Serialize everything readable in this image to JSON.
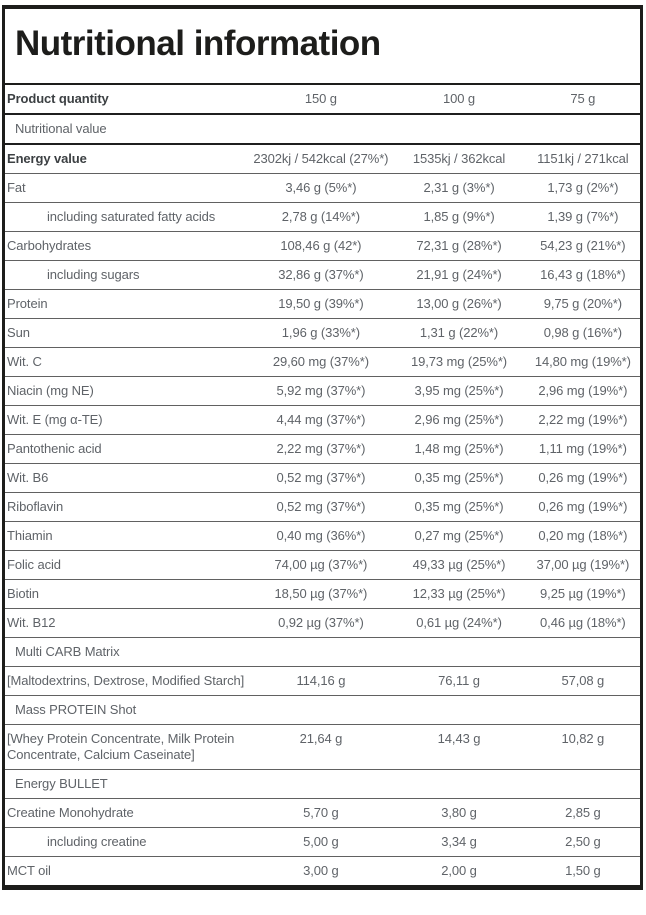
{
  "title": "Nutritional information",
  "colors": {
    "frame_border": "#1d1d1b",
    "title_text": "#1d1d1b",
    "bold_label_text": "#3c4043",
    "body_text": "#5f6368"
  },
  "table": {
    "header": {
      "label": "Product quantity",
      "values": [
        "150 g",
        "100 g",
        "75 g"
      ]
    },
    "rows": [
      {
        "type": "section",
        "label": "Nutritional value",
        "bold": true,
        "heavy": true
      },
      {
        "type": "data",
        "label": "Energy value",
        "bold": true,
        "values": [
          "2302kj / 542kcal (27%*)",
          "1535kj / 362kcal",
          "1151kj / 271kcal"
        ]
      },
      {
        "type": "data",
        "label": "Fat",
        "values": [
          "3,46 g (5%*)",
          "2,31 g (3%*)",
          "1,73 g (2%*)"
        ]
      },
      {
        "type": "data",
        "label": "including saturated fatty acids",
        "indent": true,
        "values": [
          "2,78 g (14%*)",
          "1,85 g (9%*)",
          "1,39 g (7%*)"
        ]
      },
      {
        "type": "data",
        "label": "Carbohydrates",
        "values": [
          "108,46 g (42*)",
          "72,31 g (28%*)",
          "54,23 g (21%*)"
        ]
      },
      {
        "type": "data",
        "label": "including sugars",
        "indent": true,
        "values": [
          "32,86 g (37%*)",
          "21,91 g (24%*)",
          "16,43 g (18%*)"
        ]
      },
      {
        "type": "data",
        "label": "Protein",
        "values": [
          "19,50 g (39%*)",
          "13,00 g (26%*)",
          "9,75 g (20%*)"
        ]
      },
      {
        "type": "data",
        "label": "Sun",
        "values": [
          "1,96 g (33%*)",
          "1,31 g (22%*)",
          "0,98 g (16%*)"
        ]
      },
      {
        "type": "data",
        "label": "Wit. C",
        "values": [
          "29,60 mg (37%*)",
          "19,73 mg (25%*)",
          "14,80 mg (19%*)"
        ]
      },
      {
        "type": "data",
        "label": "Niacin (mg NE)",
        "values": [
          "5,92 mg (37%*)",
          "3,95 mg (25%*)",
          "2,96 mg (19%*)"
        ]
      },
      {
        "type": "data",
        "label": "Wit. E (mg α-TE)",
        "values": [
          "4,44 mg (37%*)",
          "2,96 mg (25%*)",
          "2,22 mg (19%*)"
        ]
      },
      {
        "type": "data",
        "label": "Pantothenic acid",
        "values": [
          "2,22 mg (37%*)",
          "1,48 mg (25%*)",
          "1,11 mg (19%*)"
        ]
      },
      {
        "type": "data",
        "label": "Wit. B6",
        "values": [
          "0,52 mg (37%*)",
          "0,35 mg (25%*)",
          "0,26 mg (19%*)"
        ]
      },
      {
        "type": "data",
        "label": "Riboflavin",
        "values": [
          "0,52 mg (37%*)",
          "0,35 mg (25%*)",
          "0,26 mg (19%*)"
        ]
      },
      {
        "type": "data",
        "label": "Thiamin",
        "values": [
          "0,40 mg (36%*)",
          "0,27 mg (25%*)",
          "0,20 mg (18%*)"
        ]
      },
      {
        "type": "data",
        "label": "Folic acid",
        "values": [
          "74,00 µg (37%*)",
          "49,33 µg (25%*)",
          "37,00 µg (19%*)"
        ]
      },
      {
        "type": "data",
        "label": "Biotin",
        "values": [
          "18,50 µg (37%*)",
          "12,33 µg (25%*)",
          "9,25 µg (19%*)"
        ]
      },
      {
        "type": "data",
        "label": "Wit. B12",
        "values": [
          "0,92 µg (37%*)",
          "0,61 µg (24%*)",
          "0,46 µg (18%*)"
        ]
      },
      {
        "type": "section",
        "label": "Multi CARB Matrix"
      },
      {
        "type": "data",
        "label": "[Maltodextrins, Dextrose, Modified Starch]",
        "values": [
          "114,16 g",
          "76,11 g",
          "57,08 g"
        ]
      },
      {
        "type": "section",
        "label": "Mass PROTEIN Shot"
      },
      {
        "type": "data",
        "label": "[Whey Protein Concentrate, Milk Protein Concentrate, Calcium Caseinate]",
        "values": [
          "21,64 g",
          "14,43 g",
          "10,82 g"
        ]
      },
      {
        "type": "section",
        "label": "Energy BULLET"
      },
      {
        "type": "data",
        "label": "Creatine Monohydrate",
        "values": [
          "5,70 g",
          "3,80 g",
          "2,85 g"
        ]
      },
      {
        "type": "data",
        "label": "including creatine",
        "indent": true,
        "values": [
          "5,00 g",
          "3,34 g",
          "2,50 g"
        ]
      },
      {
        "type": "data",
        "label": "MCT oil",
        "values": [
          "3,00 g",
          "2,00 g",
          "1,50 g"
        ]
      }
    ]
  }
}
